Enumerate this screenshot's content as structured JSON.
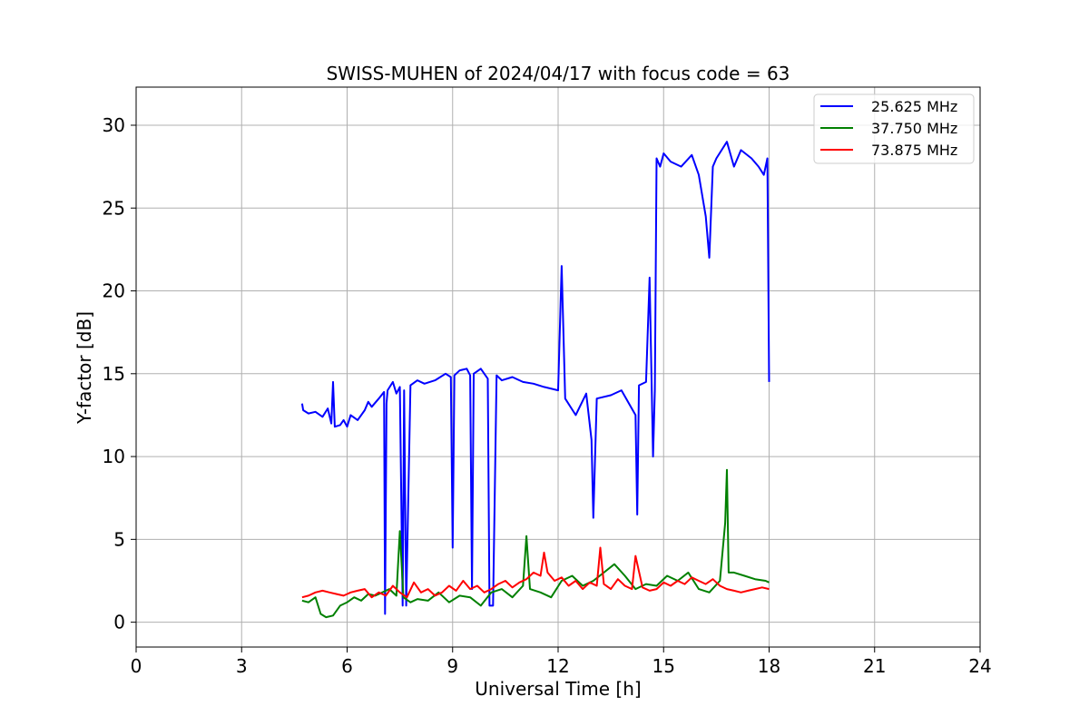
{
  "chart_data": {
    "type": "line",
    "title": "SWISS-MUHEN of 2024/04/17 with focus code = 63",
    "xlabel": "Universal Time [h]",
    "ylabel": "Y-factor [dB]",
    "xlim": [
      0,
      24
    ],
    "ylim": [
      -1.5,
      32.3
    ],
    "xticks": [
      0,
      3,
      6,
      9,
      12,
      15,
      18,
      21,
      24
    ],
    "yticks": [
      0,
      5,
      10,
      15,
      20,
      25,
      30
    ],
    "grid": true,
    "legend_position": "top-right",
    "series": [
      {
        "name": "25.625 MHz",
        "color": "#0000ff",
        "x": [
          4.72,
          4.75,
          4.9,
          5.1,
          5.3,
          5.45,
          5.55,
          5.6,
          5.65,
          5.8,
          5.9,
          6.0,
          6.1,
          6.3,
          6.5,
          6.6,
          6.7,
          6.9,
          7.05,
          7.08,
          7.12,
          7.15,
          7.3,
          7.4,
          7.5,
          7.58,
          7.62,
          7.68,
          7.8,
          8.0,
          8.2,
          8.5,
          8.8,
          8.95,
          9.0,
          9.05,
          9.2,
          9.4,
          9.5,
          9.55,
          9.6,
          9.8,
          10.0,
          10.05,
          10.15,
          10.25,
          10.4,
          10.7,
          11.0,
          11.3,
          11.6,
          12.0,
          12.1,
          12.2,
          12.5,
          12.8,
          12.95,
          13.0,
          13.1,
          13.5,
          13.8,
          14.2,
          14.25,
          14.3,
          14.5,
          14.6,
          14.7,
          14.75,
          14.8,
          14.9,
          15.0,
          15.2,
          15.5,
          15.8,
          16.0,
          16.2,
          16.3,
          16.4,
          16.5,
          16.8,
          17.0,
          17.2,
          17.5,
          17.7,
          17.85,
          17.95,
          18.0
        ],
        "values": [
          13.2,
          12.8,
          12.6,
          12.7,
          12.4,
          12.9,
          12.0,
          14.5,
          11.8,
          11.9,
          12.2,
          11.8,
          12.5,
          12.2,
          12.8,
          13.3,
          13.0,
          13.5,
          13.9,
          0.5,
          13.2,
          14.0,
          14.5,
          13.8,
          14.2,
          1.0,
          14.0,
          1.0,
          14.3,
          14.6,
          14.4,
          14.6,
          15.0,
          14.8,
          4.5,
          14.9,
          15.2,
          15.3,
          14.9,
          2.0,
          15.0,
          15.3,
          14.7,
          1.0,
          1.0,
          14.9,
          14.6,
          14.8,
          14.5,
          14.4,
          14.2,
          14.0,
          21.5,
          13.5,
          12.5,
          13.8,
          11.0,
          6.3,
          13.5,
          13.7,
          14.0,
          12.5,
          6.5,
          14.3,
          14.5,
          20.8,
          10.0,
          14.0,
          28.0,
          27.5,
          28.3,
          27.8,
          27.5,
          28.2,
          27.0,
          24.5,
          22.0,
          27.5,
          28.0,
          29.0,
          27.5,
          28.5,
          28.0,
          27.5,
          27.0,
          28.0,
          14.5
        ]
      },
      {
        "name": "37.750 MHz",
        "color": "#008000",
        "x": [
          4.72,
          4.9,
          5.1,
          5.25,
          5.4,
          5.6,
          5.8,
          6.0,
          6.2,
          6.4,
          6.6,
          6.8,
          7.0,
          7.2,
          7.4,
          7.5,
          7.6,
          7.8,
          8.0,
          8.3,
          8.6,
          8.9,
          9.2,
          9.5,
          9.8,
          10.1,
          10.4,
          10.7,
          11.0,
          11.1,
          11.2,
          11.5,
          11.8,
          12.1,
          12.4,
          12.7,
          13.0,
          13.3,
          13.6,
          13.9,
          14.2,
          14.5,
          14.8,
          15.1,
          15.4,
          15.7,
          16.0,
          16.3,
          16.6,
          16.75,
          16.8,
          16.85,
          17.0,
          17.3,
          17.6,
          17.9,
          18.0
        ],
        "values": [
          1.3,
          1.2,
          1.5,
          0.5,
          0.3,
          0.4,
          1.0,
          1.2,
          1.5,
          1.3,
          1.7,
          1.6,
          1.8,
          2.0,
          1.6,
          5.5,
          1.5,
          1.2,
          1.4,
          1.3,
          1.8,
          1.2,
          1.6,
          1.5,
          1.0,
          1.8,
          2.0,
          1.5,
          2.2,
          5.2,
          2.0,
          1.8,
          1.5,
          2.5,
          2.8,
          2.2,
          2.5,
          3.0,
          3.5,
          2.8,
          2.0,
          2.3,
          2.2,
          2.8,
          2.5,
          3.0,
          2.0,
          1.8,
          2.5,
          6.0,
          9.2,
          3.0,
          3.0,
          2.8,
          2.6,
          2.5,
          2.4
        ]
      },
      {
        "name": "73.875 MHz",
        "color": "#ff0000",
        "x": [
          4.72,
          4.9,
          5.1,
          5.3,
          5.5,
          5.7,
          5.9,
          6.1,
          6.3,
          6.5,
          6.7,
          6.9,
          7.1,
          7.3,
          7.5,
          7.7,
          7.9,
          8.1,
          8.3,
          8.5,
          8.7,
          8.9,
          9.1,
          9.3,
          9.5,
          9.7,
          9.9,
          10.1,
          10.3,
          10.5,
          10.7,
          10.9,
          11.1,
          11.3,
          11.5,
          11.6,
          11.7,
          11.9,
          12.1,
          12.3,
          12.5,
          12.7,
          12.9,
          13.1,
          13.2,
          13.3,
          13.5,
          13.7,
          13.9,
          14.1,
          14.2,
          14.4,
          14.6,
          14.8,
          15.0,
          15.2,
          15.4,
          15.6,
          15.8,
          16.0,
          16.2,
          16.4,
          16.6,
          16.8,
          17.0,
          17.2,
          17.4,
          17.6,
          17.8,
          18.0
        ],
        "values": [
          1.5,
          1.6,
          1.8,
          1.9,
          1.8,
          1.7,
          1.6,
          1.8,
          1.9,
          2.0,
          1.5,
          1.8,
          1.6,
          2.2,
          1.8,
          1.5,
          2.4,
          1.8,
          2.0,
          1.6,
          1.8,
          2.2,
          1.9,
          2.5,
          2.0,
          2.2,
          1.8,
          2.0,
          2.3,
          2.5,
          2.1,
          2.4,
          2.6,
          3.0,
          2.8,
          4.2,
          3.0,
          2.5,
          2.7,
          2.2,
          2.5,
          2.0,
          2.4,
          2.2,
          4.5,
          2.3,
          2.0,
          2.6,
          2.2,
          2.0,
          4.0,
          2.1,
          1.9,
          2.0,
          2.4,
          2.2,
          2.5,
          2.3,
          2.7,
          2.5,
          2.3,
          2.6,
          2.2,
          2.0,
          1.9,
          1.8,
          1.9,
          2.0,
          2.1,
          2.0
        ]
      }
    ]
  }
}
